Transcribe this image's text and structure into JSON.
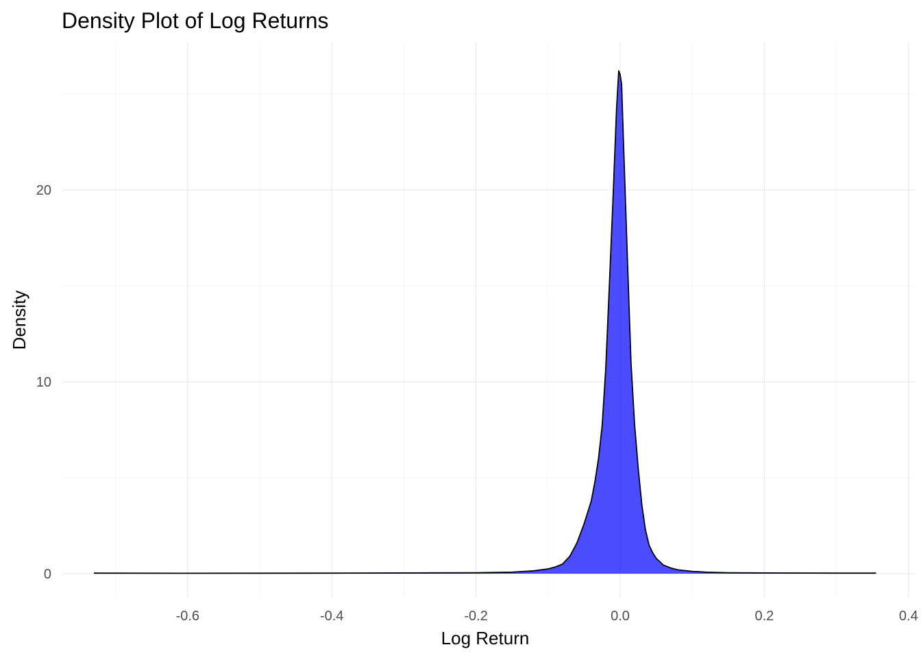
{
  "chart_data": {
    "type": "area",
    "title": "Density Plot of Log Returns",
    "xlabel": "Log Return",
    "ylabel": "Density",
    "xlim": [
      -0.76,
      0.405
    ],
    "ylim": [
      -1.2,
      27.5
    ],
    "x_ticks": [
      -0.6,
      -0.4,
      -0.2,
      0.0,
      0.2,
      0.4
    ],
    "x_tick_labels": [
      "-0.6",
      "-0.4",
      "-0.2",
      "0.0",
      "0.2",
      "0.4"
    ],
    "y_ticks": [
      0,
      10,
      20
    ],
    "y_tick_labels": [
      "0",
      "10",
      "20"
    ],
    "grid": true,
    "legend": "none",
    "fill_color": "#0000FF",
    "fill_opacity": 0.7,
    "line_color": "#000000",
    "series": [
      {
        "x": [
          -0.73,
          -0.6,
          -0.4,
          -0.2,
          -0.15,
          -0.12,
          -0.1,
          -0.09,
          -0.08,
          -0.07,
          -0.06,
          -0.05,
          -0.04,
          -0.035,
          -0.03,
          -0.025,
          -0.02,
          -0.015,
          -0.01,
          -0.005,
          -0.002,
          0.0,
          0.002,
          0.005,
          0.01,
          0.015,
          0.02,
          0.025,
          0.03,
          0.035,
          0.04,
          0.045,
          0.05,
          0.06,
          0.07,
          0.08,
          0.1,
          0.12,
          0.15,
          0.2,
          0.3,
          0.355
        ],
        "y": [
          0.03,
          0.02,
          0.03,
          0.05,
          0.08,
          0.15,
          0.25,
          0.35,
          0.5,
          0.9,
          1.6,
          2.6,
          3.8,
          4.8,
          6.0,
          7.7,
          10.7,
          15.0,
          19.5,
          24.2,
          26.2,
          26.0,
          25.5,
          22.0,
          16.5,
          11.0,
          7.8,
          5.5,
          3.6,
          2.3,
          1.5,
          1.1,
          0.8,
          0.45,
          0.3,
          0.2,
          0.12,
          0.08,
          0.05,
          0.04,
          0.03,
          0.03
        ]
      }
    ]
  }
}
